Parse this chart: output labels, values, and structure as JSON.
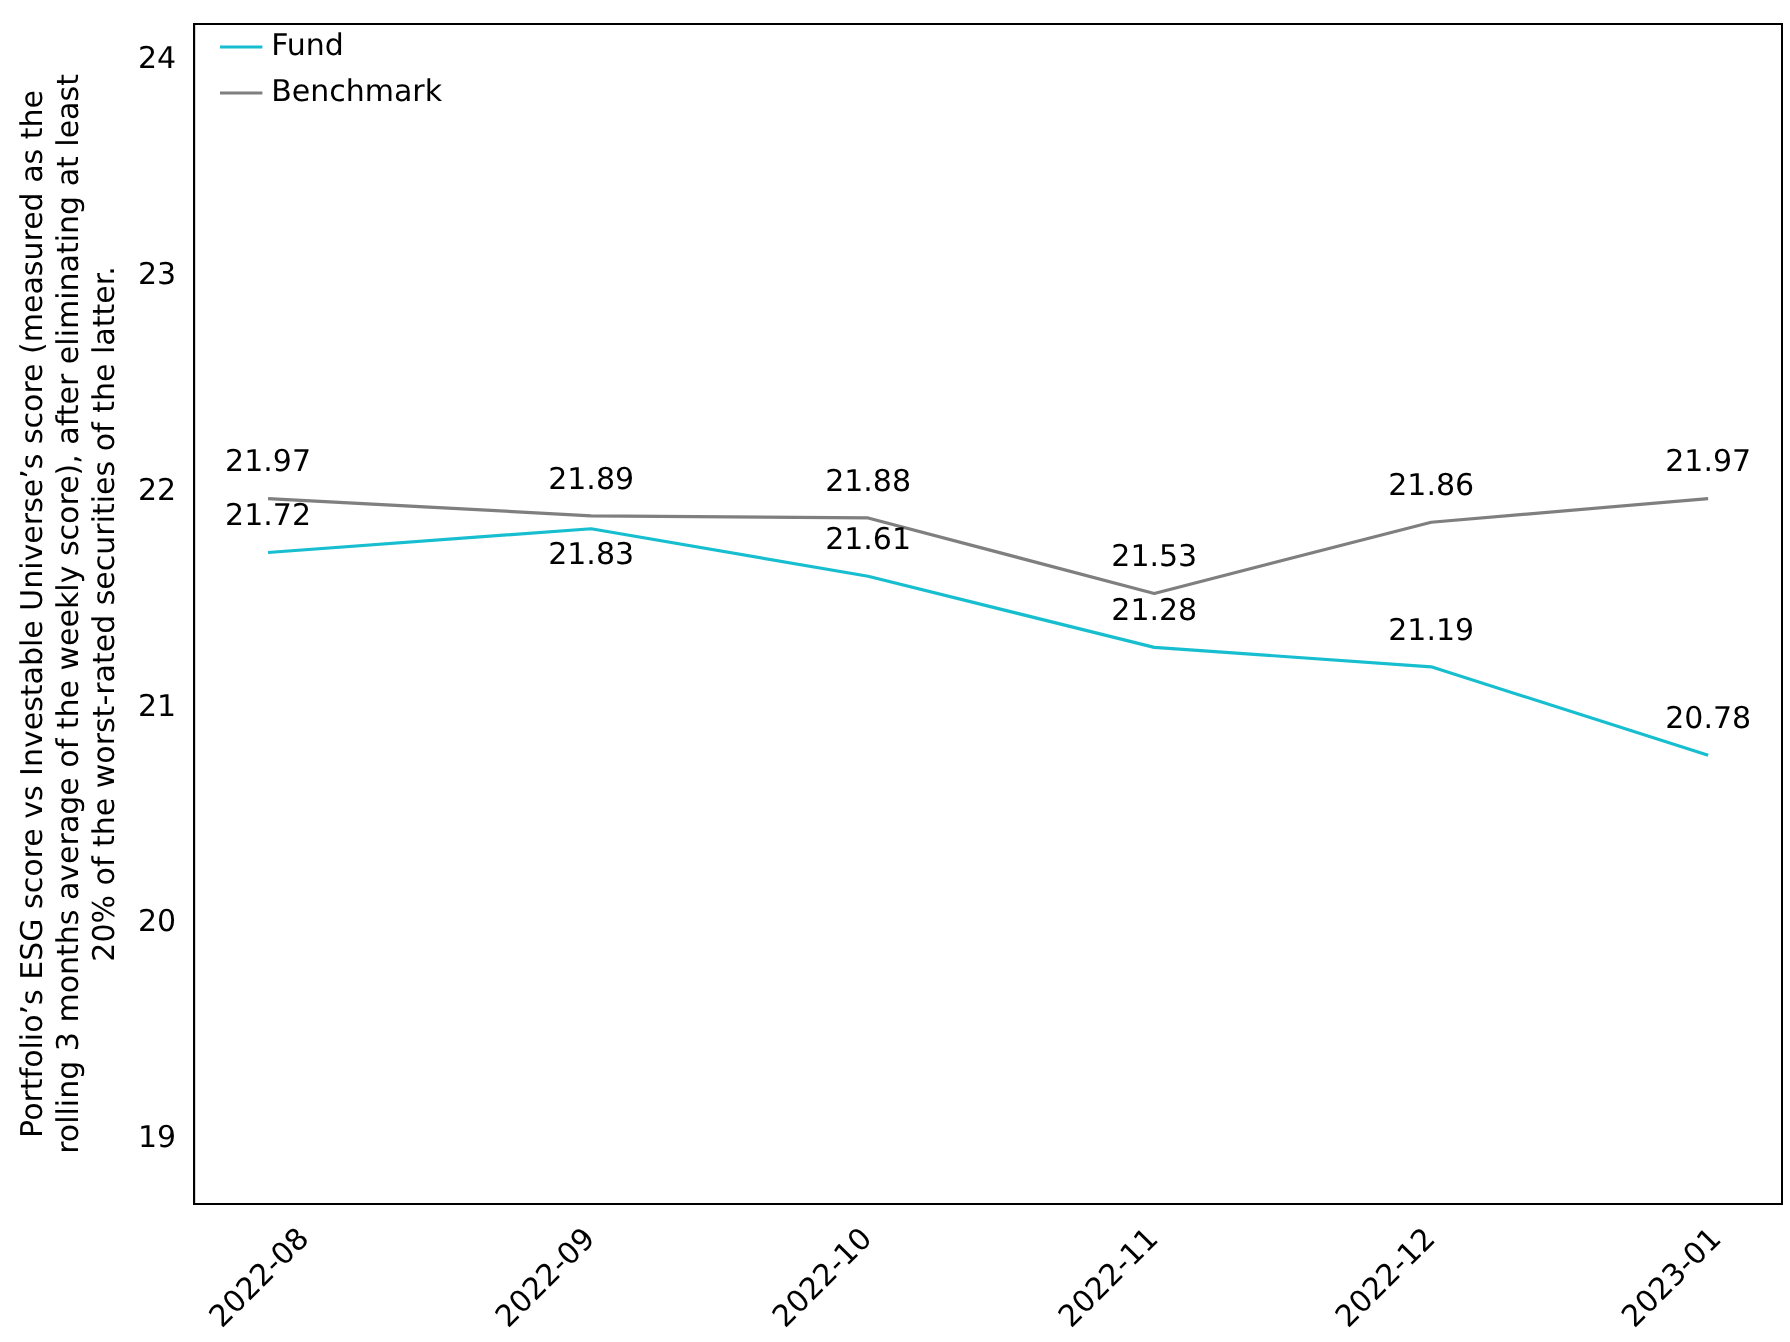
{
  "chart_data": {
    "type": "line",
    "ylabel": "Portfolio’s ESG score vs Investable Universe’s score (measured as the rolling 3 months average of the weekly score), after eliminating at least 20% of the worst-rated securities of the latter.",
    "x": [
      "2022-07-28",
      "2022-09-01",
      "2022-10-01",
      "2022-11-01",
      "2022-12-01",
      "2022-12-31"
    ],
    "series": [
      {
        "name": "Fund",
        "color": "#17becf",
        "values": [
          21.72,
          21.83,
          21.61,
          21.28,
          21.19,
          20.78
        ]
      },
      {
        "name": "Benchmark",
        "color": "#7f7f7f",
        "values": [
          21.97,
          21.89,
          21.88,
          21.53,
          21.86,
          21.97
        ]
      }
    ],
    "xlim": [
      "2022-07-20",
      "2023-01-08"
    ],
    "xticks": [
      "2022-08",
      "2022-09",
      "2022-10",
      "2022-11",
      "2022-12",
      "2023-01"
    ],
    "ylim": [
      18.7,
      24.17
    ],
    "yticks": [
      19,
      20,
      21,
      22,
      23,
      24
    ],
    "data_labels": true,
    "legend": "top left",
    "grid": false,
    "marker": "none",
    "line_style": "solid"
  }
}
